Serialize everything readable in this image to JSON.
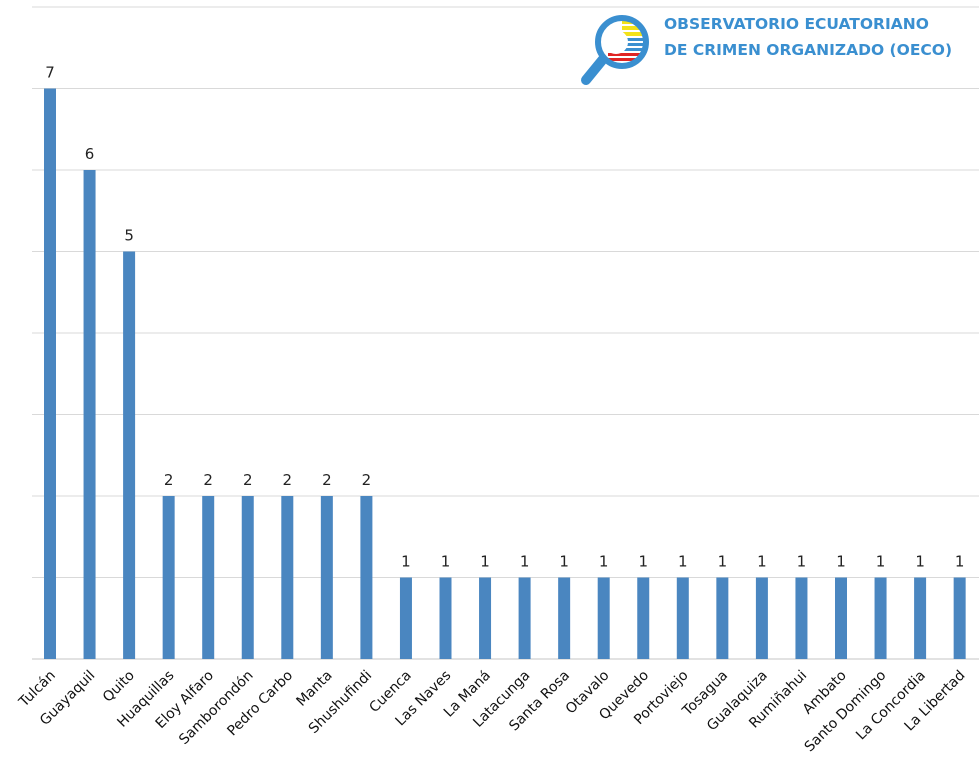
{
  "logo": {
    "line1": "OBSERVATORIO ECUATORIANO",
    "line2": "DE CRIMEN ORGANIZADO (OECO)"
  },
  "colors": {
    "bar": "#4a86c0",
    "grid": "#d9d9d9",
    "logo_text": "#3a8fd0"
  },
  "chart_data": {
    "type": "bar",
    "title": "",
    "xlabel": "",
    "ylabel": "",
    "ylim": [
      0,
      8
    ],
    "grid": true,
    "legend": "none",
    "categories": [
      "Tulcán",
      "Guayaquil",
      "Quito",
      "Huaquillas",
      "Eloy Alfaro",
      "Samborondón",
      "Pedro Carbo",
      "Manta",
      "Shushufindi",
      "Cuenca",
      "Las Naves",
      "La Maná",
      "Latacunga",
      "Santa Rosa",
      "Otavalo",
      "Quevedo",
      "Portoviejo",
      "Tosagua",
      "Gualaquiza",
      "Rumiñahui",
      "Ambato",
      "Santo Domingo",
      "La Concordia",
      "La Libertad"
    ],
    "values": [
      7,
      6,
      5,
      2,
      2,
      2,
      2,
      2,
      2,
      1,
      1,
      1,
      1,
      1,
      1,
      1,
      1,
      1,
      1,
      1,
      1,
      1,
      1,
      1
    ]
  }
}
